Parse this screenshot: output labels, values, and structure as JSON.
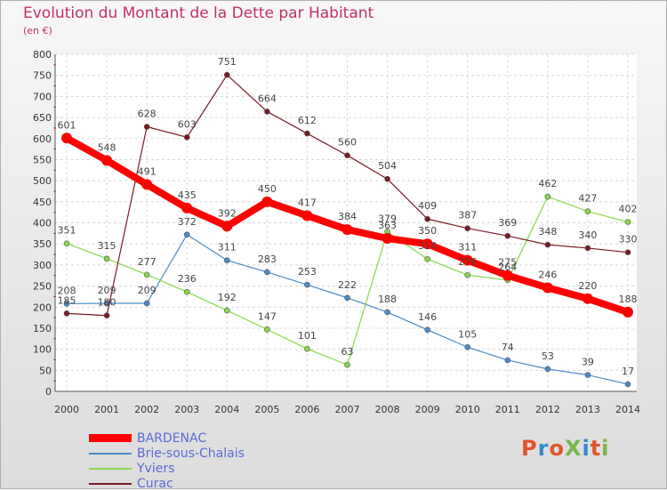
{
  "title": "Evolution du Montant de la Dette par Habitant",
  "unit": "(en €)",
  "logo": {
    "text": "ProXiti",
    "letter_colors": [
      "#e0542b",
      "#3b86c8",
      "#e0542b",
      "#7ab648",
      "#3b86c8",
      "#e0542b",
      "#7ab648"
    ]
  },
  "chart_data": {
    "type": "line",
    "title": "Evolution du Montant de la Dette par Habitant",
    "ylabel": "(en €)",
    "xlabel": "",
    "x": [
      "2000",
      "2001",
      "2002",
      "2003",
      "2004",
      "2005",
      "2006",
      "2007",
      "2008",
      "2009",
      "2010",
      "2011",
      "2012",
      "2013",
      "2014"
    ],
    "ylim": [
      0,
      800
    ],
    "yticks": [
      "0",
      "50",
      "100",
      "150",
      "200",
      "250",
      "300",
      "350",
      "400",
      "450",
      "500",
      "550",
      "600",
      "650",
      "700",
      "750",
      "800"
    ],
    "grid": true,
    "legend_position": "bottom-left",
    "series": [
      {
        "name": "BARDENAC",
        "color": "#ff0000",
        "values": [
          601,
          548,
          491,
          435,
          392,
          450,
          417,
          384,
          363,
          350,
          311,
          275,
          246,
          220,
          188
        ],
        "labels": [
          "601",
          "548",
          "491",
          "435",
          "392",
          "450",
          "417",
          "384",
          "363",
          "350",
          "311",
          "275",
          "246",
          "220",
          "188"
        ]
      },
      {
        "name": "Brie-sous-Chalais",
        "color": "#4a8cc8",
        "values": [
          208,
          209,
          209,
          372,
          311,
          283,
          253,
          222,
          188,
          146,
          105,
          74,
          53,
          39,
          17
        ],
        "labels": [
          "208",
          "209",
          "209",
          "372",
          "311",
          "283",
          "253",
          "222",
          "188",
          "146",
          "105",
          "74",
          "53",
          "39",
          "17"
        ]
      },
      {
        "name": "Yviers",
        "color": "#88d84a",
        "values": [
          351,
          315,
          277,
          236,
          192,
          147,
          101,
          63,
          379,
          314,
          276,
          264,
          462,
          427,
          402
        ],
        "labels": [
          "351",
          "315",
          "277",
          "236",
          "192",
          "147",
          "101",
          "63",
          "379",
          "314",
          "276",
          "264",
          "462",
          "427",
          "402"
        ]
      },
      {
        "name": "Curac",
        "color": "#7a1a24",
        "values": [
          185,
          180,
          628,
          603,
          751,
          664,
          612,
          560,
          504,
          409,
          387,
          369,
          348,
          340,
          330
        ],
        "labels": [
          "185",
          "180",
          "628",
          "603",
          "751",
          "664",
          "612",
          "560",
          "504",
          "409",
          "387",
          "369",
          "348",
          "340",
          "330"
        ]
      }
    ]
  }
}
